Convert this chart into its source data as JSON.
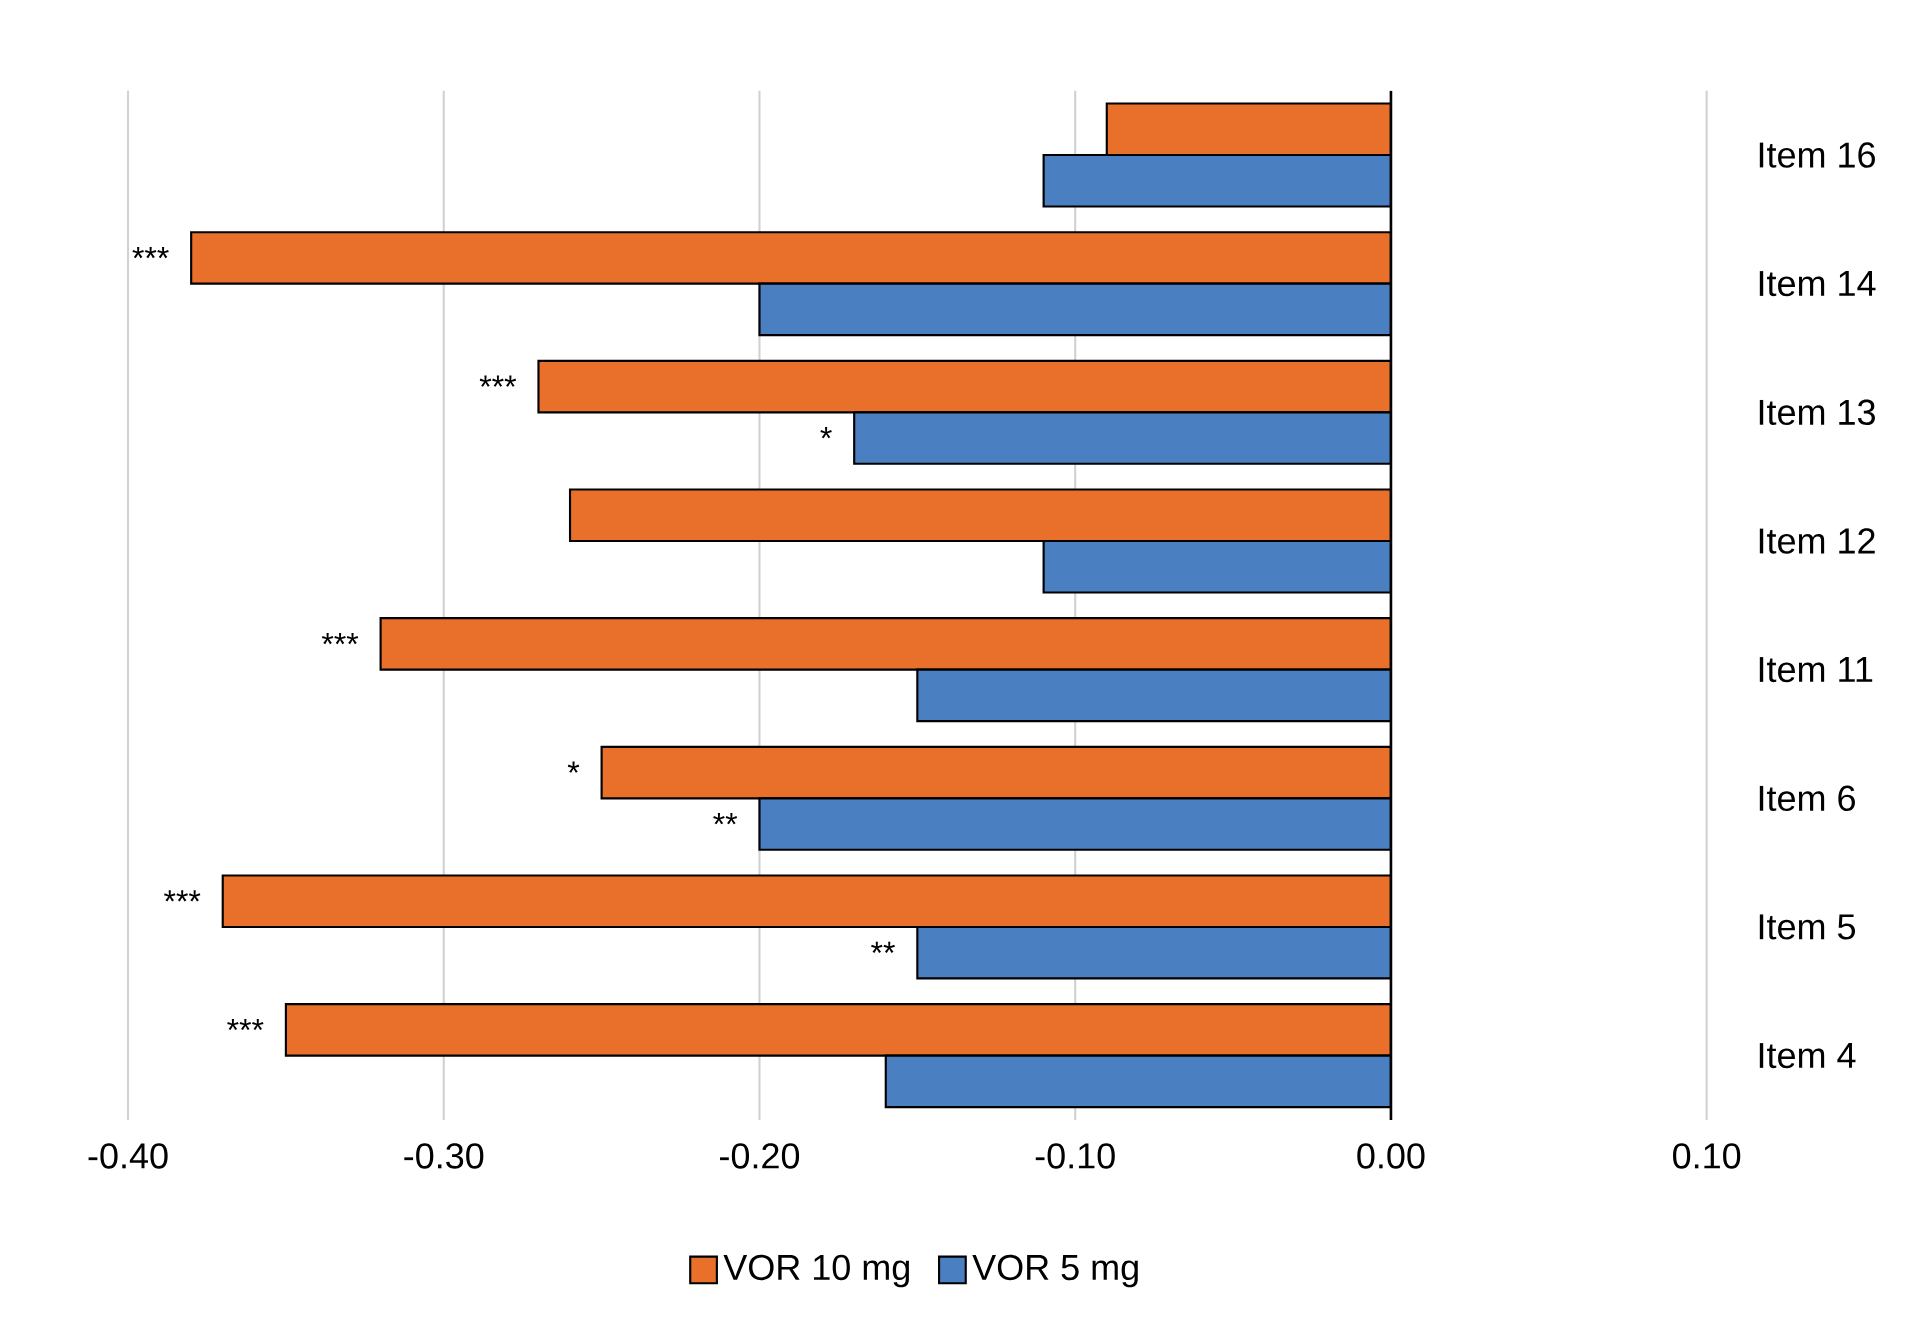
{
  "chart_data": {
    "type": "bar",
    "orientation": "horizontal",
    "categories": [
      "Item 16",
      "Item 14",
      "Item 13",
      "Item 12",
      "Item 11",
      "Item 6",
      "Item 5",
      "Item 4"
    ],
    "series": [
      {
        "name": "VOR 10 mg",
        "color": "#e8702a",
        "values": [
          -0.09,
          -0.38,
          -0.27,
          -0.26,
          -0.32,
          -0.25,
          -0.37,
          -0.35
        ]
      },
      {
        "name": "VOR 5 mg",
        "color": "#4a7fc1",
        "values": [
          -0.11,
          -0.2,
          -0.17,
          -0.11,
          -0.15,
          -0.2,
          -0.15,
          -0.16
        ]
      }
    ],
    "xlim": [
      -0.4,
      0.1
    ],
    "xticks": [
      {
        "value": -0.4,
        "label": "-0.40"
      },
      {
        "value": -0.3,
        "label": "-0.30"
      },
      {
        "value": -0.2,
        "label": "-0.20"
      },
      {
        "value": -0.1,
        "label": "-0.10"
      },
      {
        "value": 0,
        "label": "0.00"
      },
      {
        "value": 0.1,
        "label": "0.10"
      }
    ],
    "grid": "x",
    "legend": "bottom",
    "annotations": [
      {
        "text": "***",
        "x": -0.38,
        "y": "Item 14"
      },
      {
        "text": "***",
        "x": -0.27,
        "y": "Item 13"
      },
      {
        "text": "*",
        "x": -0.17,
        "y": "Item 13"
      },
      {
        "text": "***",
        "x": -0.32,
        "y": "Item 11"
      },
      {
        "text": "*",
        "x": -0.25,
        "y": "Item 6"
      },
      {
        "text": "**",
        "x": -0.2,
        "y": "Item 6"
      },
      {
        "text": "***",
        "x": -0.37,
        "y": "Item 5"
      },
      {
        "text": "**",
        "x": -0.15,
        "y": "Item 5"
      },
      {
        "text": "***",
        "x": -0.35,
        "y": "Item 4"
      }
    ]
  }
}
